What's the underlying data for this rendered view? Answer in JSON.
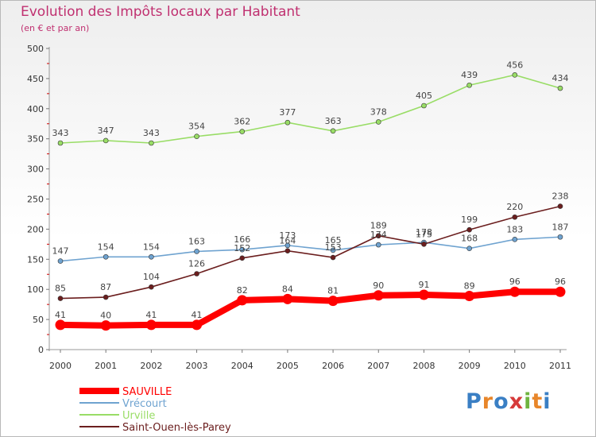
{
  "header": {
    "title": "Evolution des Impôts locaux par Habitant",
    "subtitle": "(en € et par an)"
  },
  "logo": {
    "text": "Proxiti",
    "colors": [
      "#3a7fc4",
      "#e8862a",
      "#3a7fc4",
      "#d63a3a",
      "#6fb43f",
      "#e8862a",
      "#3a7fc4"
    ]
  },
  "chart_data": {
    "type": "line",
    "title": "Evolution des Impôts locaux par Habitant",
    "subtitle": "(en € et par an)",
    "xlabel": "",
    "ylabel": "",
    "categories": [
      "2000",
      "2001",
      "2002",
      "2003",
      "2004",
      "2005",
      "2006",
      "2007",
      "2008",
      "2009",
      "2010",
      "2011"
    ],
    "ylim": [
      0,
      500
    ],
    "yticks": [
      0,
      50,
      100,
      150,
      200,
      250,
      300,
      350,
      400,
      450,
      500
    ],
    "grid": false,
    "legend_position": "bottom-left",
    "series": [
      {
        "name": "SAUVILLE",
        "color": "#ff0000",
        "values": [
          41,
          40,
          41,
          41,
          82,
          84,
          81,
          90,
          91,
          89,
          96,
          96
        ],
        "bold": true
      },
      {
        "name": "Vrécourt",
        "color": "#6fa3d0",
        "values": [
          147,
          154,
          154,
          163,
          166,
          173,
          165,
          174,
          178,
          168,
          183,
          187
        ]
      },
      {
        "name": "Urville",
        "color": "#99dd66",
        "values": [
          343,
          347,
          343,
          354,
          362,
          377,
          363,
          378,
          405,
          439,
          456,
          434
        ]
      },
      {
        "name": "Saint-Ouen-lès-Parey",
        "color": "#6b1e1e",
        "values": [
          85,
          87,
          104,
          126,
          152,
          164,
          153,
          189,
          175,
          199,
          220,
          238
        ]
      }
    ]
  }
}
